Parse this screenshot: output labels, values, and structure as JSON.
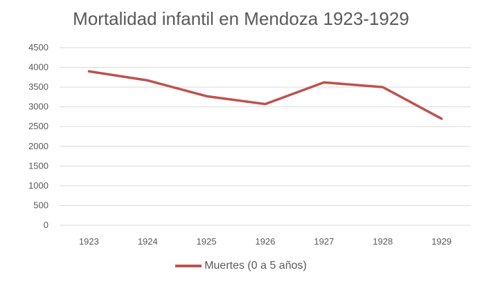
{
  "chart_data": {
    "type": "line",
    "title": "Mortalidad infantil en Mendoza 1923-1929",
    "xlabel": "",
    "ylabel": "",
    "categories": [
      "1923",
      "1924",
      "1925",
      "1926",
      "1927",
      "1928",
      "1929"
    ],
    "series": [
      {
        "name": "Muertes (0 a 5 años)",
        "values": [
          3900,
          3670,
          3270,
          3070,
          3620,
          3500,
          2700
        ],
        "color": "#c0504d"
      }
    ],
    "yticks": [
      "0",
      "500",
      "1000",
      "1500",
      "2000",
      "2500",
      "3000",
      "3500",
      "4000",
      "4500"
    ],
    "ylim": [
      0,
      4500
    ],
    "grid": true,
    "legend_position": "bottom"
  }
}
